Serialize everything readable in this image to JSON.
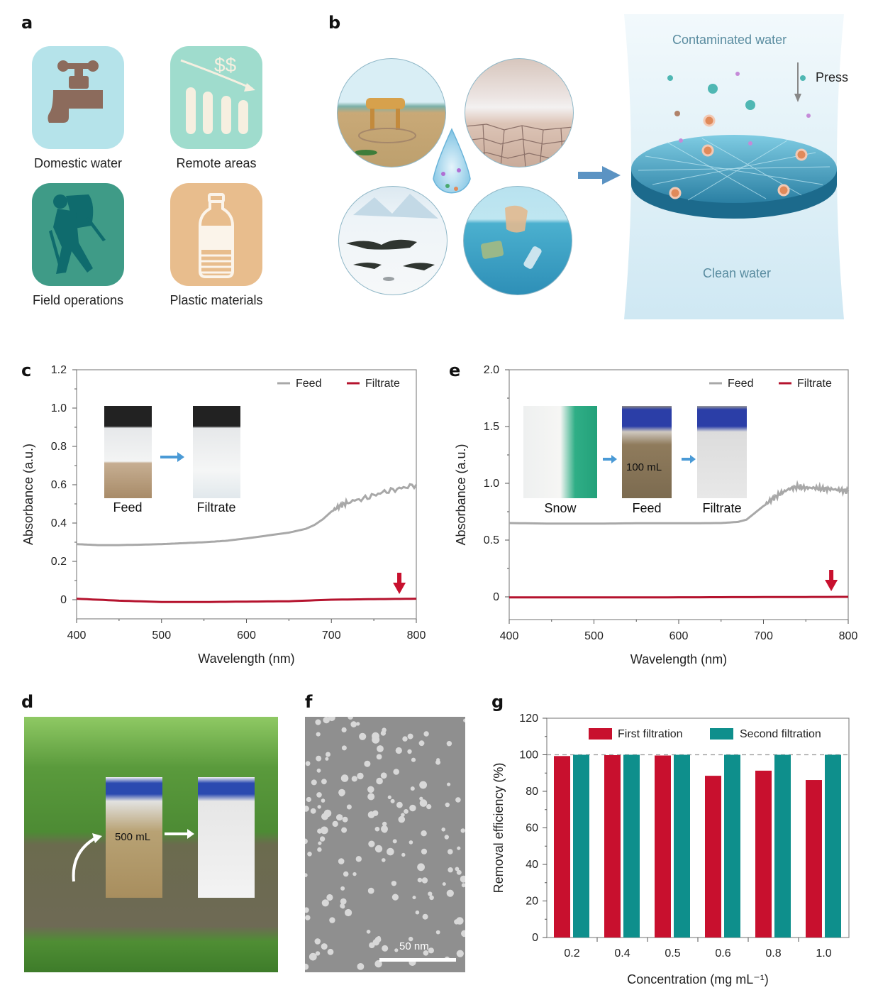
{
  "panels": {
    "a": {
      "letter": "a",
      "items": [
        {
          "label": "Domestic water",
          "icon": "faucet-icon",
          "color": "#b5e3ea"
        },
        {
          "label": "Remote areas",
          "icon": "declining-cost-icon",
          "color": "#9fdccd"
        },
        {
          "label": "Field operations",
          "icon": "hiker-icon",
          "color": "#3f9b87"
        },
        {
          "label": "Plastic materials",
          "icon": "bottle-icon",
          "color": "#e8bd8d"
        }
      ],
      "remote_symbol": "$$"
    },
    "b": {
      "letter": "b",
      "scenes": [
        "arid-well-scene",
        "cracked-desert-scene",
        "snowfield-scene",
        "ocean-plastic-scene"
      ],
      "contaminated_label": "Contaminated water",
      "clean_label": "Clean water",
      "press_label": "Press"
    },
    "c": {
      "letter": "c"
    },
    "d": {
      "letter": "d",
      "volume_label": "500 mL"
    },
    "e": {
      "letter": "e"
    },
    "f": {
      "letter": "f",
      "scale_bar_label": "50 nm"
    },
    "g": {
      "letter": "g"
    }
  },
  "chart_data": [
    {
      "id": "c",
      "type": "line",
      "title": "",
      "xlabel": "Wavelength (nm)",
      "ylabel": "Absorbance (a.u.)",
      "xlim": [
        400,
        800
      ],
      "ylim": [
        -0.1,
        1.2
      ],
      "xticks": [
        400,
        500,
        600,
        700,
        800
      ],
      "xtick_labels": [
        "400",
        "500",
        "600",
        "700",
        "800"
      ],
      "yticks": [
        0,
        0.2,
        0.4,
        0.6,
        0.8,
        1.0,
        1.2
      ],
      "ytick_labels": [
        "0",
        "0.2",
        "0.4",
        "0.6",
        "0.8",
        "1.0",
        "1.2"
      ],
      "legend": {
        "placement": "top-right",
        "entries": [
          "Feed",
          "Filtrate"
        ]
      },
      "inset_labels": [
        "Feed",
        "Filtrate"
      ],
      "annotation": "red arrow at ~780 nm pointing to filtrate line",
      "series": [
        {
          "name": "Feed",
          "color": "#a8a8a8",
          "x": [
            400,
            425,
            450,
            475,
            500,
            525,
            550,
            575,
            600,
            625,
            650,
            670,
            680,
            690,
            700,
            710,
            720,
            740,
            760,
            780,
            800
          ],
          "y": [
            0.29,
            0.285,
            0.285,
            0.287,
            0.29,
            0.295,
            0.3,
            0.307,
            0.32,
            0.335,
            0.35,
            0.37,
            0.39,
            0.42,
            0.46,
            0.49,
            0.51,
            0.53,
            0.56,
            0.58,
            0.6
          ]
        },
        {
          "name": "Filtrate",
          "color": "#b5132e",
          "x": [
            400,
            450,
            500,
            550,
            600,
            650,
            700,
            750,
            800
          ],
          "y": [
            0.005,
            -0.005,
            -0.012,
            -0.012,
            -0.01,
            -0.008,
            0.0,
            0.003,
            0.005
          ]
        }
      ]
    },
    {
      "id": "e",
      "type": "line",
      "title": "",
      "xlabel": "Wavelength (nm)",
      "ylabel": "Absorbance (a.u.)",
      "xlim": [
        400,
        800
      ],
      "ylim": [
        -0.2,
        2.0
      ],
      "xticks": [
        400,
        500,
        600,
        700,
        800
      ],
      "xtick_labels": [
        "400",
        "500",
        "600",
        "700",
        "800"
      ],
      "yticks": [
        0,
        0.5,
        1.0,
        1.5,
        2.0
      ],
      "ytick_labels": [
        "0",
        "0.5",
        "1.0",
        "1.5",
        "2.0"
      ],
      "legend": {
        "placement": "top-right",
        "entries": [
          "Feed",
          "Filtrate"
        ]
      },
      "inset_labels": [
        "Snow",
        "Feed",
        "Filtrate"
      ],
      "inset_volume_label": "100 mL",
      "annotation": "red arrow at ~780 nm pointing to filtrate line",
      "series": [
        {
          "name": "Feed",
          "color": "#a8a8a8",
          "x": [
            400,
            450,
            500,
            550,
            600,
            650,
            670,
            680,
            690,
            700,
            710,
            720,
            730,
            740,
            750,
            760,
            770,
            780,
            790,
            800
          ],
          "y": [
            0.65,
            0.645,
            0.645,
            0.648,
            0.648,
            0.65,
            0.66,
            0.68,
            0.74,
            0.8,
            0.86,
            0.91,
            0.95,
            0.97,
            0.96,
            0.96,
            0.95,
            0.95,
            0.94,
            0.93
          ]
        },
        {
          "name": "Filtrate",
          "color": "#b5132e",
          "x": [
            400,
            500,
            600,
            700,
            800
          ],
          "y": [
            -0.005,
            -0.005,
            -0.004,
            -0.002,
            0.0
          ]
        }
      ]
    },
    {
      "id": "g",
      "type": "bar",
      "title": "",
      "xlabel": "Concentration (mg mL⁻¹)",
      "ylabel": "Removal efficiency (%)",
      "ylim": [
        0,
        120
      ],
      "yticks": [
        0,
        20,
        40,
        60,
        80,
        100,
        120
      ],
      "ytick_labels": [
        "0",
        "20",
        "40",
        "60",
        "80",
        "100",
        "120"
      ],
      "categories": [
        "0.2",
        "0.4",
        "0.5",
        "0.6",
        "0.8",
        "1.0"
      ],
      "reference_line": 100,
      "legend": {
        "placement": "top",
        "entries": [
          "First filtration",
          "Second filtration"
        ]
      },
      "series": [
        {
          "name": "First filtration",
          "color": "#c8102e",
          "values": [
            99.3,
            99.8,
            99.6,
            88.5,
            91.3,
            86.2
          ]
        },
        {
          "name": "Second filtration",
          "color": "#0e8f8c",
          "values": [
            100,
            100,
            100,
            100,
            100,
            100
          ]
        }
      ]
    }
  ]
}
